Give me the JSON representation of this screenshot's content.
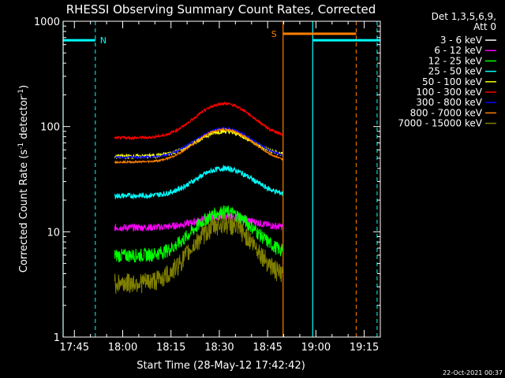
{
  "chart_data": {
    "type": "line",
    "title": "RHESSI Observing Summary Count Rates, Corrected",
    "xlabel": "Start Time (28-May-12 17:42:42)",
    "ylabel": "Corrected Count Rate (s⁻¹ detector⁻¹)",
    "ylabel_parts": {
      "base": "Corrected Count Rate (s",
      "sup1": "-1",
      "mid": " detector",
      "sup2": "-1",
      "end": ")"
    },
    "y_scale": "log",
    "ylim": [
      1,
      1000
    ],
    "x_start_minutes": 17.7,
    "xlim_minutes": [
      -3.5,
      95
    ],
    "x_tick_labels": [
      "17:45",
      "18:00",
      "18:15",
      "18:30",
      "18:45",
      "19:00",
      "19:15"
    ],
    "y_tick_labels": [
      "1",
      "10",
      "100",
      "1000"
    ],
    "legend_header": [
      "Det 1,3,5,6,9,",
      "Att 0"
    ],
    "legend_position": "right",
    "series": [
      {
        "name": "3 - 6 keV",
        "color": "#ffffff",
        "trace_color": "#000000",
        "base": 3.3,
        "peak": 11,
        "noise": 0.45
      },
      {
        "name": "6 - 12 keV",
        "color": "#ff00ff",
        "base": 11,
        "peak": 14,
        "noise": 0.08
      },
      {
        "name": "12 - 25 keV",
        "color": "#00ff00",
        "base": 6,
        "peak": 15.5,
        "noise": 0.15
      },
      {
        "name": "25 - 50 keV",
        "color": "#00ffff",
        "base": 22,
        "peak": 40,
        "noise": 0.06
      },
      {
        "name": "50 - 100 keV",
        "color": "#ffff00",
        "base": 52,
        "peak": 90,
        "noise": 0.05
      },
      {
        "name": "100 - 300 keV",
        "color": "#ff0000",
        "base": 78,
        "peak": 165,
        "noise": 0.03
      },
      {
        "name": "300 - 800 keV",
        "color": "#0000ff",
        "base": 51,
        "peak": 96,
        "noise": 0.02
      },
      {
        "name": "800 - 7000 keV",
        "color": "#ff8000",
        "base": 46,
        "peak": 94,
        "noise": 0.02
      },
      {
        "name": "7000 - 15000 keV",
        "color": "#808000",
        "base": 3.3,
        "peak": 12,
        "noise": 0.22
      }
    ],
    "data_window_minutes": [
      12.5,
      64.8
    ],
    "peak_time_minutes": 46.5,
    "annotations": {
      "night_label": "N",
      "saa_label": "S",
      "night_bars": [
        [
          -3.5,
          6.5
        ],
        [
          74,
          96
        ]
      ],
      "saa_bar": [
        64.8,
        87.5
      ],
      "cyan_solid_lines": [
        -3.5,
        74
      ],
      "cyan_dashed_lines": [
        6.5,
        94
      ],
      "orange_solid_line": 64.8,
      "orange_dashed_line": 87.5,
      "bar_level": 660,
      "saa_level": 760
    },
    "timestamp": "22-Oct-2021 00:37"
  }
}
